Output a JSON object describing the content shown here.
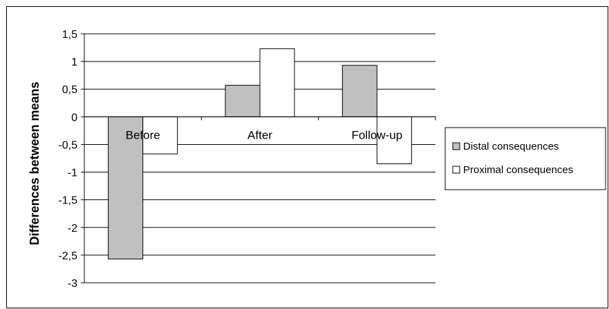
{
  "chart_data": {
    "type": "bar",
    "categories": [
      "Before",
      "After",
      "Follow-up"
    ],
    "series": [
      {
        "name": "Distal consequences",
        "values": [
          -2.57,
          0.57,
          0.93
        ]
      },
      {
        "name": "Proximal consequences",
        "values": [
          -0.67,
          1.23,
          -0.85
        ]
      }
    ],
    "title": "",
    "xlabel": "",
    "ylabel": "Differences between means",
    "ylim": [
      -3,
      1.5
    ],
    "yticks": [
      1.5,
      1,
      0.5,
      0,
      -0.5,
      -1,
      -1.5,
      -2,
      -2.5,
      -3
    ],
    "ytick_labels": [
      "1,5",
      "1",
      "0,5",
      "0",
      "-0,5",
      "-1",
      "-1,5",
      "-2",
      "-2,5",
      "-3"
    ],
    "grid": true,
    "legend_position": "right",
    "colors": {
      "Distal consequences": "#c0c0c0",
      "Proximal consequences": "#ffffff",
      "grid": "#000000",
      "frame": "#000000"
    }
  }
}
